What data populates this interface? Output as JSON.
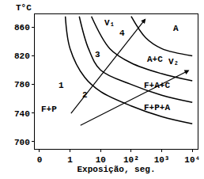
{
  "chart_data": {
    "type": "line",
    "xlabel": "Exposição, seg.",
    "ylabel": "T°C",
    "log": "x",
    "grid": false,
    "color": "#000000",
    "xlim": [
      0.07,
      15000
    ],
    "ylim": [
      690,
      878
    ],
    "xticks": [
      {
        "value": 0.1,
        "label": "0"
      },
      1,
      10,
      {
        "value": 100,
        "label": "10²"
      },
      {
        "value": 1000,
        "label": "10³"
      },
      {
        "value": 10000,
        "label": "10⁴"
      }
    ],
    "yticks": [
      700,
      740,
      780,
      820,
      860
    ],
    "series": [
      {
        "x": [
          0.7,
          1,
          3,
          10,
          100,
          1000,
          10000
        ],
        "values": [
          875,
          830,
          790,
          770,
          750,
          735,
          725
        ]
      },
      {
        "x": [
          2,
          4,
          10,
          100,
          1000,
          10000
        ],
        "values": [
          875,
          830,
          800,
          780,
          765,
          755
        ]
      },
      {
        "x": [
          5,
          20,
          100,
          1000,
          10000
        ],
        "values": [
          875,
          830,
          810,
          795,
          785
        ]
      },
      {
        "x": [
          100,
          300,
          1000,
          10000
        ],
        "values": [
          875,
          845,
          830,
          820
        ]
      }
    ],
    "annotations": [
      {
        "text": "F+P",
        "x": 0.2,
        "y": 745
      },
      {
        "text": "1",
        "x": 0.5,
        "y": 778
      },
      {
        "text": "2",
        "x": 3,
        "y": 765
      },
      {
        "text": "3",
        "x": 8,
        "y": 822
      },
      {
        "text": "4",
        "x": 50,
        "y": 852
      },
      {
        "text": "A",
        "x": 3000,
        "y": 858
      },
      {
        "text": "A+C",
        "x": 600,
        "y": 815
      },
      {
        "text": "F+A+C",
        "x": 700,
        "y": 779
      },
      {
        "text": "F+P+A",
        "x": 700,
        "y": 748
      }
    ],
    "arrows": [
      {
        "text": "V₁",
        "x": [
          1,
          300
        ],
        "y": [
          738,
          872
        ],
        "label_x": 20,
        "label_y": 866
      },
      {
        "text": "V₂",
        "x": [
          2,
          8000
        ],
        "y": [
          722,
          800
        ],
        "label_x": 2500,
        "label_y": 812
      }
    ]
  }
}
